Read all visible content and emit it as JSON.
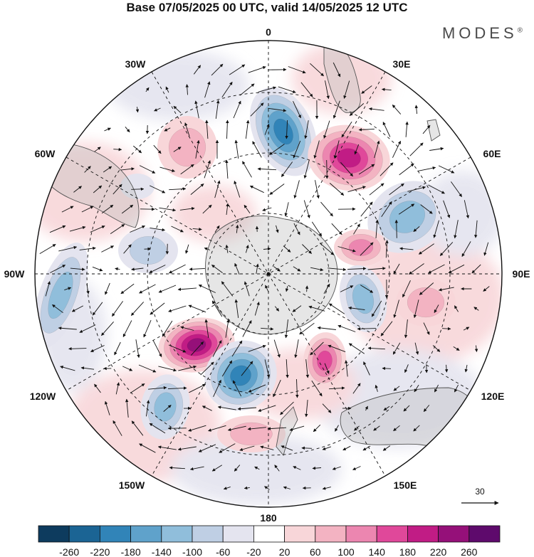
{
  "title": "Base 07/05/2025 00 UTC, valid 14/05/2025 12 UTC",
  "brand": "MODES",
  "brand_mark": "®",
  "longitude_labels": {
    "top": "0",
    "top_left": "30W",
    "top_right": "30E",
    "upper_left": "60W",
    "upper_right": "60E",
    "left": "90W",
    "right": "90E",
    "lower_left": "120W",
    "lower_right": "120E",
    "bottom_left": "150W",
    "bottom_right": "150E",
    "bottom": "180"
  },
  "vector_reference": {
    "label": "30"
  },
  "colorbar": {
    "colors": [
      "#0d3b5e",
      "#1b6494",
      "#3184b8",
      "#5fa2cb",
      "#90bedb",
      "#bfcfe4",
      "#e4e4ef",
      "#ffffff",
      "#f8d6d9",
      "#f3b3c2",
      "#ec86b0",
      "#e0489a",
      "#c11c85",
      "#951079",
      "#5e0a6c"
    ],
    "labels": [
      "-260",
      "-220",
      "-180",
      "-140",
      "-100",
      "-60",
      "-20",
      "20",
      "60",
      "100",
      "140",
      "180",
      "220",
      "260"
    ]
  },
  "anomaly_cells": [
    {
      "sign": "neg",
      "level": 5
    },
    {
      "sign": "pos",
      "level": 5
    },
    {
      "sign": "neg",
      "level": 3
    },
    {
      "sign": "pos",
      "level": 3
    },
    {
      "sign": "neg",
      "level": 3
    },
    {
      "sign": "pos",
      "level": 6
    },
    {
      "sign": "neg",
      "level": 5
    },
    {
      "sign": "neg",
      "level": 3
    },
    {
      "sign": "pos",
      "level": 4
    },
    {
      "sign": "pos",
      "level": 2
    },
    {
      "sign": "neg",
      "level": 2
    },
    {
      "sign": "neg",
      "level": 3
    },
    {
      "sign": "pos",
      "level": 2
    },
    {
      "sign": "pos",
      "level": 2
    },
    {
      "sign": "neg",
      "level": 1
    }
  ]
}
